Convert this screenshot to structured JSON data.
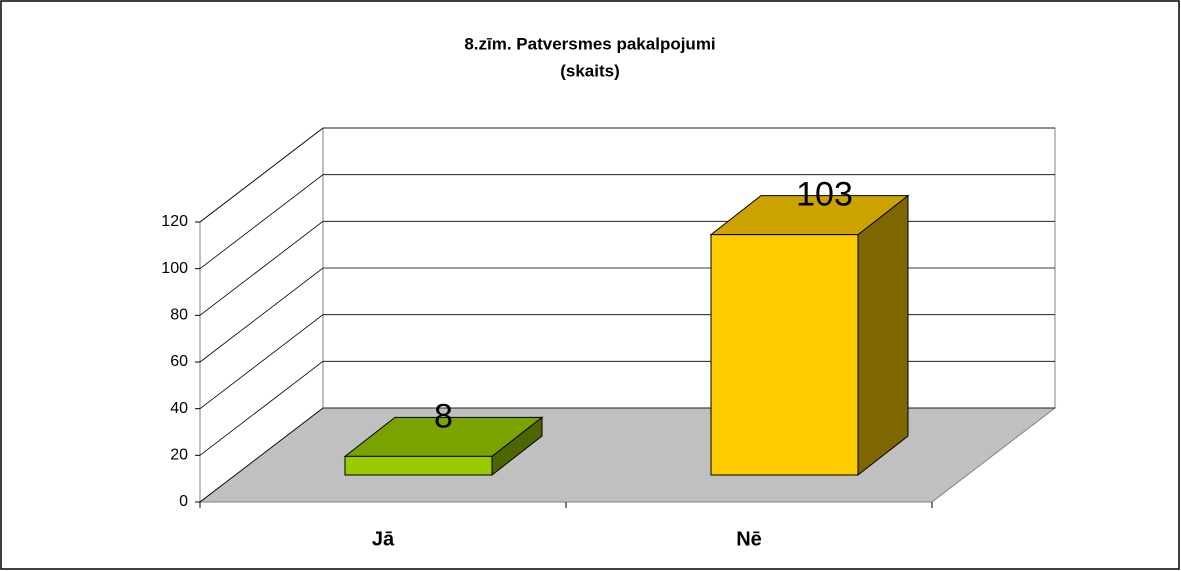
{
  "chart_data": {
    "type": "bar3d",
    "title": "8.zīm.  Patversmes pakalpojumi",
    "subtitle": "(skaits)",
    "categories": [
      "Jā",
      "Nē"
    ],
    "values": [
      8,
      103
    ],
    "colors": [
      "#99cc00",
      "#ffcc00"
    ],
    "ylim": [
      0,
      120
    ],
    "yticks": [
      0,
      20,
      40,
      60,
      80,
      100,
      120
    ],
    "grid": true
  }
}
